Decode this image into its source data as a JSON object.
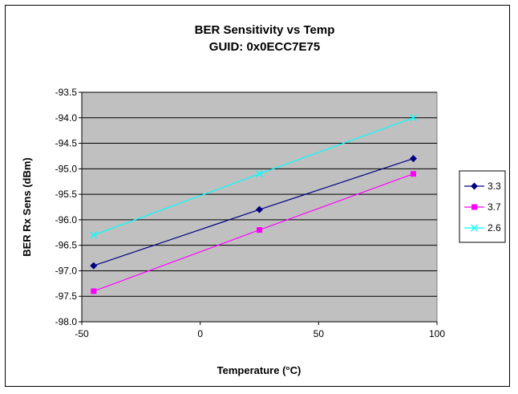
{
  "chart_data": {
    "type": "line",
    "title": "BER Sensitivity vs Temp",
    "subtitle": "GUID: 0x0ECC7E75",
    "xlabel": "Temperature (°C)",
    "ylabel": "BER Rx Sens (dBm)",
    "xlim": [
      -50,
      100
    ],
    "ylim": [
      -98.0,
      -93.5
    ],
    "x_ticks": [
      -50,
      0,
      50,
      100
    ],
    "x_tick_labels": [
      "-50",
      "0",
      "50",
      "100"
    ],
    "y_ticks": [
      -93.5,
      -94.0,
      -94.5,
      -95.0,
      -95.5,
      -96.0,
      -96.5,
      -97.0,
      -97.5,
      -98.0
    ],
    "y_tick_labels": [
      "-93.5",
      "-94.0",
      "-94.5",
      "-95.0",
      "-95.5",
      "-96.0",
      "-96.5",
      "-97.0",
      "-97.5",
      "-98.0"
    ],
    "grid": "horizontal",
    "legend_position": "right",
    "plot_background": "#c0c0c0",
    "series": [
      {
        "name": "3.3",
        "color": "#000080",
        "marker": "diamond",
        "x": [
          -45,
          25,
          90
        ],
        "y": [
          -96.9,
          -95.8,
          -94.8
        ]
      },
      {
        "name": "3.7",
        "color": "#ff00ff",
        "marker": "square",
        "x": [
          -45,
          25,
          90
        ],
        "y": [
          -97.4,
          -96.2,
          -95.1
        ]
      },
      {
        "name": "2.6",
        "color": "#00ffff",
        "marker": "x",
        "x": [
          -45,
          25,
          90
        ],
        "y": [
          -96.3,
          -95.1,
          -94.0
        ]
      }
    ]
  }
}
